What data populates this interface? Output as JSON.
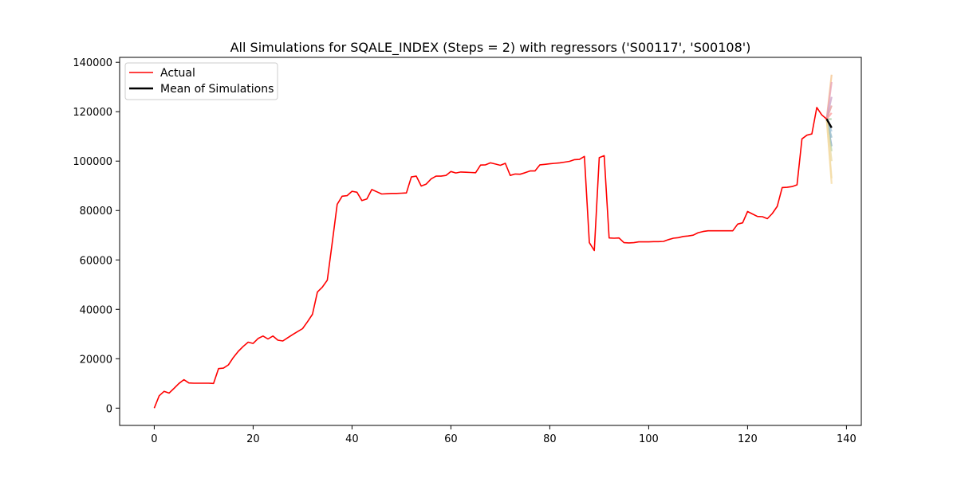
{
  "chart_data": {
    "type": "line",
    "title": "All Simulations for SQALE_INDEX (Steps = 2) with regressors ('S00117', 'S00108')",
    "xlabel": "",
    "ylabel": "",
    "xlim": [
      -7,
      143
    ],
    "ylim": [
      -7000,
      142000
    ],
    "xticks": [
      0,
      20,
      40,
      60,
      80,
      100,
      120,
      140
    ],
    "yticks": [
      0,
      20000,
      40000,
      60000,
      80000,
      100000,
      120000,
      140000
    ],
    "xtick_labels": [
      "0",
      "20",
      "40",
      "60",
      "80",
      "100",
      "120",
      "140"
    ],
    "ytick_labels": [
      "0",
      "20000",
      "40000",
      "60000",
      "80000",
      "100000",
      "120000",
      "140000"
    ],
    "grid": false,
    "legend": {
      "placement": "top-left",
      "entries": [
        {
          "label": "Actual",
          "color": "#ff0000"
        },
        {
          "label": "Mean of Simulations",
          "color": "#000000"
        }
      ]
    },
    "series": [
      {
        "name": "Actual",
        "color": "#ff0000",
        "x": [
          0,
          1,
          2,
          3,
          4,
          5,
          6,
          7,
          8,
          9,
          10,
          11,
          12,
          13,
          14,
          15,
          16,
          17,
          18,
          19,
          20,
          21,
          22,
          23,
          24,
          25,
          26,
          27,
          28,
          29,
          30,
          31,
          32,
          33,
          34,
          35,
          36,
          37,
          38,
          39,
          40,
          41,
          42,
          43,
          44,
          45,
          46,
          47,
          48,
          49,
          50,
          51,
          52,
          53,
          54,
          55,
          56,
          57,
          58,
          59,
          60,
          61,
          62,
          63,
          64,
          65,
          66,
          67,
          68,
          69,
          70,
          71,
          72,
          73,
          74,
          75,
          76,
          77,
          78,
          79,
          80,
          81,
          82,
          83,
          84,
          85,
          86,
          87,
          88,
          89,
          90,
          91,
          92,
          93,
          94,
          95,
          96,
          97,
          98,
          99,
          100,
          101,
          102,
          103,
          104,
          105,
          106,
          107,
          108,
          109,
          110,
          111,
          112,
          113,
          114,
          115,
          116,
          117,
          118,
          119,
          120,
          121,
          122,
          123,
          124,
          125,
          126,
          127,
          128,
          129,
          130,
          131,
          132,
          133,
          134,
          135,
          136
        ],
        "y": [
          0,
          5000,
          6800,
          6100,
          8000,
          10000,
          11500,
          10200,
          10100,
          10100,
          10100,
          10100,
          10000,
          16000,
          16200,
          17500,
          20500,
          23000,
          25000,
          26700,
          26200,
          28200,
          29200,
          28000,
          29200,
          27500,
          27200,
          28500,
          29800,
          31000,
          32200,
          35000,
          38000,
          47000,
          49000,
          51800,
          67000,
          82500,
          85800,
          86000,
          87800,
          87400,
          84000,
          84700,
          88500,
          87600,
          86700,
          86800,
          86900,
          86900,
          87000,
          87100,
          93600,
          93900,
          89900,
          90700,
          92800,
          93900,
          93900,
          94200,
          95800,
          95200,
          95600,
          95500,
          95400,
          95300,
          98400,
          98500,
          99300,
          98800,
          98300,
          99100,
          94200,
          94800,
          94700,
          95300,
          96000,
          96000,
          98500,
          98700,
          98900,
          99100,
          99300,
          99600,
          99900,
          100600,
          100700,
          101900,
          67000,
          63800,
          101400,
          102200,
          68900,
          68800,
          68900,
          67000,
          66900,
          67000,
          67300,
          67300,
          67300,
          67400,
          67400,
          67500,
          68200,
          68800,
          69000,
          69500,
          69700,
          70000,
          71000,
          71500,
          71800,
          71800,
          71800,
          71800,
          71800,
          71800,
          74500,
          75000,
          79600,
          78600,
          77600,
          77500,
          76700,
          78800,
          81700,
          89300,
          89400,
          89700,
          90400,
          109000,
          110500,
          111000,
          121700,
          118700,
          117000
        ]
      },
      {
        "name": "Mean of Simulations",
        "color": "#000000",
        "x": [
          136,
          137
        ],
        "y": [
          117000,
          113500
        ]
      }
    ],
    "simulations": [
      {
        "color": "#f4c28a",
        "x": [
          136,
          137
        ],
        "y": [
          117000,
          135000
        ]
      },
      {
        "color": "#e8a0b8",
        "x": [
          136,
          137
        ],
        "y": [
          117000,
          132000
        ]
      },
      {
        "color": "#c9a0c8",
        "x": [
          136,
          137
        ],
        "y": [
          117000,
          126000
        ]
      },
      {
        "color": "#e69a9a",
        "x": [
          136,
          137
        ],
        "y": [
          117000,
          122500
        ]
      },
      {
        "color": "#ff9c9c",
        "x": [
          136,
          137
        ],
        "y": [
          117000,
          119500
        ]
      },
      {
        "color": "#a8c8a0",
        "x": [
          136,
          137
        ],
        "y": [
          117000,
          117000
        ]
      },
      {
        "color": "#9fc3dc",
        "x": [
          136,
          137
        ],
        "y": [
          117000,
          112000
        ]
      },
      {
        "color": "#8fb8c8",
        "x": [
          136,
          137
        ],
        "y": [
          117000,
          109500
        ]
      },
      {
        "color": "#7fa3c8",
        "x": [
          136,
          137
        ],
        "y": [
          117000,
          106000
        ]
      },
      {
        "color": "#b8d3a8",
        "x": [
          136,
          137
        ],
        "y": [
          117000,
          104000
        ]
      },
      {
        "color": "#e8d8a0",
        "x": [
          136,
          137
        ],
        "y": [
          117000,
          100000
        ]
      },
      {
        "color": "#f0e0b0",
        "x": [
          136,
          137
        ],
        "y": [
          117000,
          93000
        ]
      },
      {
        "color": "#f4d9a0",
        "x": [
          136,
          137
        ],
        "y": [
          117000,
          90800
        ]
      }
    ]
  }
}
